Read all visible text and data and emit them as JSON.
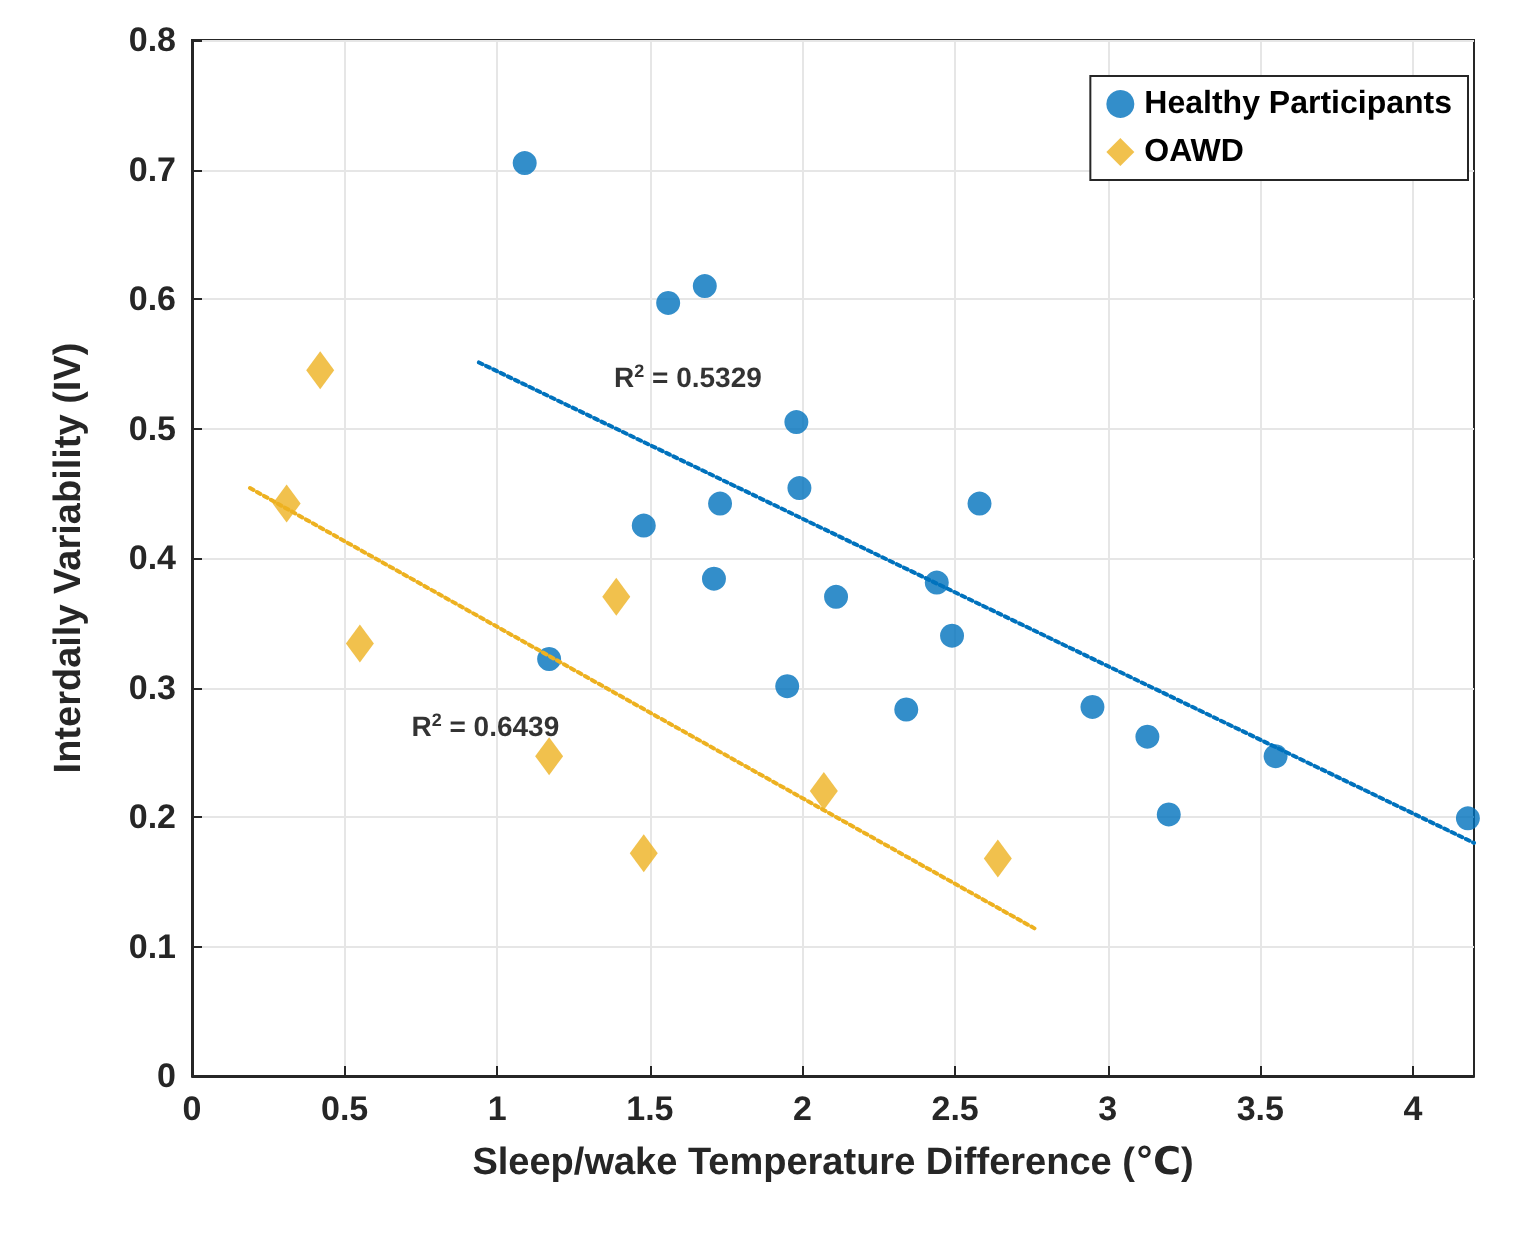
{
  "chart_data": {
    "type": "scatter",
    "xlabel": "Sleep/wake Temperature Difference (℃)",
    "ylabel": "Interdaily Variability (IV)",
    "xlim": [
      0,
      4.2
    ],
    "xticks": [
      0,
      0.5,
      1,
      1.5,
      2,
      2.5,
      3,
      3.5,
      4
    ],
    "ylim": [
      0,
      0.8
    ],
    "yticks": [
      0,
      0.1,
      0.2,
      0.3,
      0.4,
      0.5,
      0.6,
      0.7,
      0.8
    ],
    "grid": true,
    "legend": "top right",
    "series": [
      {
        "name": "Healthy Participants",
        "marker": "circle",
        "color": "#0072bd",
        "x": [
          1.09,
          1.56,
          1.68,
          1.98,
          1.99,
          1.73,
          1.48,
          2.58,
          1.71,
          2.44,
          2.11,
          2.49,
          1.17,
          1.95,
          2.34,
          2.95,
          3.13,
          3.2,
          3.55,
          4.18
        ],
        "values": [
          0.705,
          0.597,
          0.61,
          0.505,
          0.454,
          0.442,
          0.425,
          0.442,
          0.384,
          0.381,
          0.37,
          0.34,
          0.322,
          0.301,
          0.283,
          0.285,
          0.262,
          0.202,
          0.247,
          0.199
        ]
      },
      {
        "name": "OAWD",
        "marker": "diamond",
        "color": "#edb120",
        "x": [
          0.42,
          0.31,
          0.55,
          1.39,
          1.17,
          1.48,
          2.07,
          2.64
        ],
        "values": [
          0.545,
          0.442,
          0.334,
          0.37,
          0.247,
          0.172,
          0.22,
          0.168
        ]
      },
      {
        "type": "line",
        "marker": "none",
        "line_style": "dotted",
        "color": "#0072bd",
        "x": [
          0.94,
          4.2
        ],
        "values": [
          0.551,
          0.18
        ]
      },
      {
        "type": "line",
        "marker": "none",
        "line_style": "dotted",
        "color": "#edb120",
        "x": [
          0.19,
          2.76
        ],
        "values": [
          0.454,
          0.114
        ]
      }
    ],
    "annotations": [
      "R$^{2}$ = 0.5329",
      "R$^{2}$ = 0.6439"
    ]
  }
}
